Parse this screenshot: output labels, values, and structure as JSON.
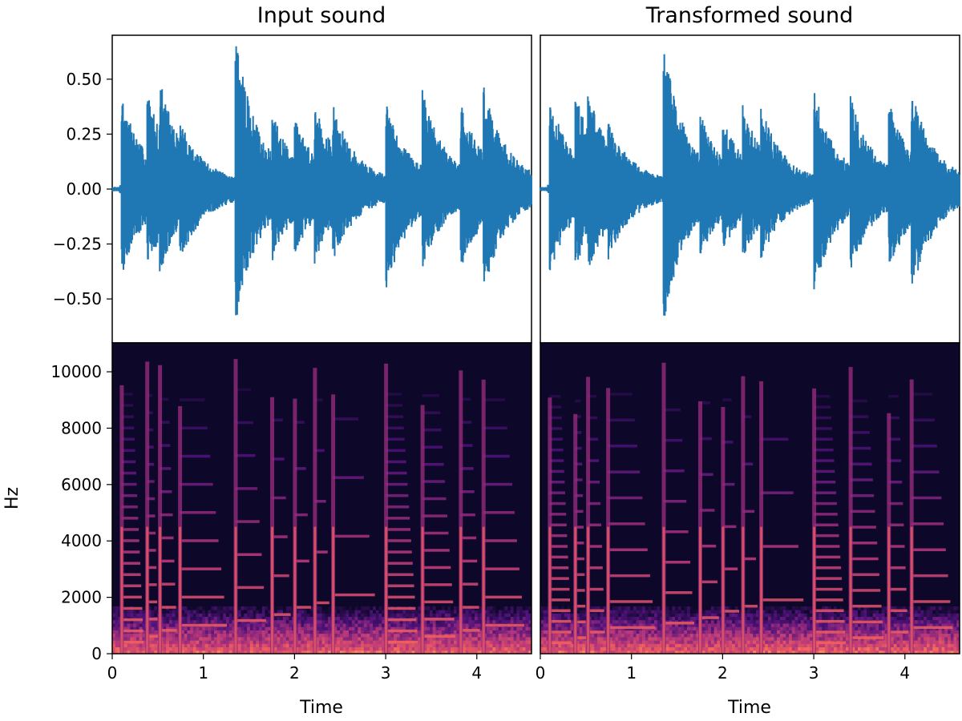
{
  "chart_data": [
    {
      "type": "line",
      "panel": "waveform",
      "title": "Input sound",
      "xlabel": "",
      "ylabel": "",
      "xlim": [
        0,
        4.6
      ],
      "ylim": [
        -0.7,
        0.7
      ],
      "yticks": [
        "0.50",
        "0.25",
        "0.00",
        "−0.25",
        "−0.50"
      ],
      "ytick_values": [
        0.5,
        0.25,
        0,
        -0.25,
        -0.5
      ],
      "color": "#1f77b4",
      "onsets": [
        {
          "t": 0.1,
          "pos": 0.38,
          "neg": -0.34
        },
        {
          "t": 0.38,
          "pos": 0.4,
          "neg": -0.32
        },
        {
          "t": 0.52,
          "pos": 0.45,
          "neg": -0.34
        },
        {
          "t": 0.74,
          "pos": 0.26,
          "neg": -0.28
        },
        {
          "t": 1.35,
          "pos": 0.65,
          "neg": -0.57
        },
        {
          "t": 1.75,
          "pos": 0.3,
          "neg": -0.28
        },
        {
          "t": 2.0,
          "pos": 0.27,
          "neg": -0.24
        },
        {
          "t": 2.22,
          "pos": 0.35,
          "neg": -0.28
        },
        {
          "t": 2.42,
          "pos": 0.33,
          "neg": -0.27
        },
        {
          "t": 3.0,
          "pos": 0.34,
          "neg": -0.42
        },
        {
          "t": 3.4,
          "pos": 0.4,
          "neg": -0.33
        },
        {
          "t": 3.82,
          "pos": 0.35,
          "neg": -0.33
        },
        {
          "t": 4.07,
          "pos": 0.43,
          "neg": -0.42
        }
      ]
    },
    {
      "type": "line",
      "panel": "waveform",
      "title": "Transformed sound",
      "xlabel": "",
      "ylabel": "",
      "xlim": [
        0,
        4.6
      ],
      "ylim": [
        -0.7,
        0.7
      ],
      "color": "#1f77b4",
      "onsets": [
        {
          "t": 0.1,
          "pos": 0.37,
          "neg": -0.33
        },
        {
          "t": 0.38,
          "pos": 0.39,
          "neg": -0.31
        },
        {
          "t": 0.52,
          "pos": 0.4,
          "neg": -0.33
        },
        {
          "t": 0.74,
          "pos": 0.26,
          "neg": -0.27
        },
        {
          "t": 1.35,
          "pos": 0.61,
          "neg": -0.56
        },
        {
          "t": 1.75,
          "pos": 0.29,
          "neg": -0.27
        },
        {
          "t": 2.0,
          "pos": 0.27,
          "neg": -0.23
        },
        {
          "t": 2.22,
          "pos": 0.33,
          "neg": -0.27
        },
        {
          "t": 2.42,
          "pos": 0.32,
          "neg": -0.27
        },
        {
          "t": 3.0,
          "pos": 0.4,
          "neg": -0.42
        },
        {
          "t": 3.4,
          "pos": 0.37,
          "neg": -0.33
        },
        {
          "t": 3.82,
          "pos": 0.35,
          "neg": -0.33
        },
        {
          "t": 4.07,
          "pos": 0.4,
          "neg": -0.43
        }
      ]
    },
    {
      "type": "heatmap",
      "panel": "spectrogram",
      "title": "",
      "xlabel": "Time",
      "ylabel": "Hz",
      "xlim": [
        0,
        4.6
      ],
      "ylim": [
        0,
        11025
      ],
      "xticks": [
        0,
        1,
        2,
        3,
        4
      ],
      "yticks": [
        0,
        2000,
        4000,
        6000,
        8000,
        10000
      ],
      "colormap": "magma",
      "fundamentals_hz": [
        400,
        610,
        820,
        1000,
        1170,
        1380,
        1640,
        1800,
        2080
      ],
      "onsets_s": [
        0.1,
        0.38,
        0.52,
        0.74,
        1.35,
        1.75,
        2.0,
        2.22,
        2.42,
        3.0,
        3.4,
        3.82,
        4.07
      ]
    },
    {
      "type": "heatmap",
      "panel": "spectrogram",
      "title": "",
      "xlabel": "Time",
      "ylabel": "",
      "xlim": [
        0,
        4.6
      ],
      "ylim": [
        0,
        11025
      ],
      "xticks": [
        0,
        1,
        2,
        3,
        4
      ],
      "colormap": "magma",
      "fundamentals_hz": [
        380,
        560,
        760,
        920,
        1080,
        1270,
        1500,
        1680,
        1900
      ],
      "onsets_s": [
        0.1,
        0.38,
        0.52,
        0.74,
        1.35,
        1.75,
        2.0,
        2.22,
        2.42,
        3.0,
        3.4,
        3.82,
        4.07
      ]
    }
  ]
}
